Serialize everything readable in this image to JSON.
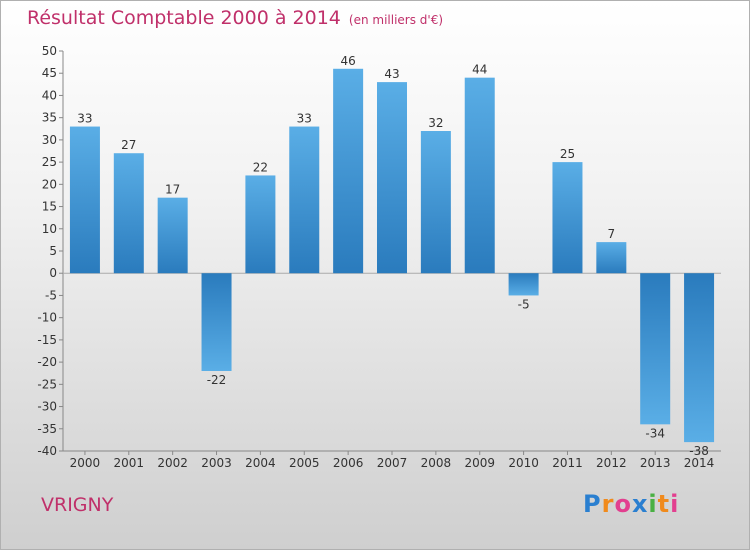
{
  "header": {
    "title": "Résultat Comptable 2000 à 2014",
    "subtitle": "(en milliers d'€)"
  },
  "footer": {
    "commune": "VRIGNY",
    "logo_letters": [
      "P",
      "r",
      "o",
      "x",
      "i",
      "t",
      "i"
    ],
    "logo_colors": [
      "#2a7fd0",
      "#f08a1c",
      "#e23f8f",
      "#2a7fd0",
      "#49b043",
      "#f08a1c",
      "#e23f8f"
    ]
  },
  "chart_data": {
    "type": "bar",
    "title": "Résultat Comptable 2000 à 2014",
    "subtitle": "(en milliers d'€)",
    "categories": [
      "2000",
      "2001",
      "2002",
      "2003",
      "2004",
      "2005",
      "2006",
      "2007",
      "2008",
      "2009",
      "2010",
      "2011",
      "2012",
      "2013",
      "2014"
    ],
    "values": [
      33,
      27,
      17,
      -22,
      22,
      33,
      46,
      43,
      32,
      44,
      -5,
      25,
      7,
      -34,
      -38
    ],
    "ylim": [
      -40,
      50
    ],
    "yticks": [
      -40,
      -35,
      -30,
      -25,
      -20,
      -15,
      -10,
      -5,
      0,
      5,
      10,
      15,
      20,
      25,
      30,
      35,
      40,
      45,
      50
    ],
    "grid": false,
    "bar_color_light": "#5aaee6",
    "bar_color_dark": "#2a7bbd"
  }
}
